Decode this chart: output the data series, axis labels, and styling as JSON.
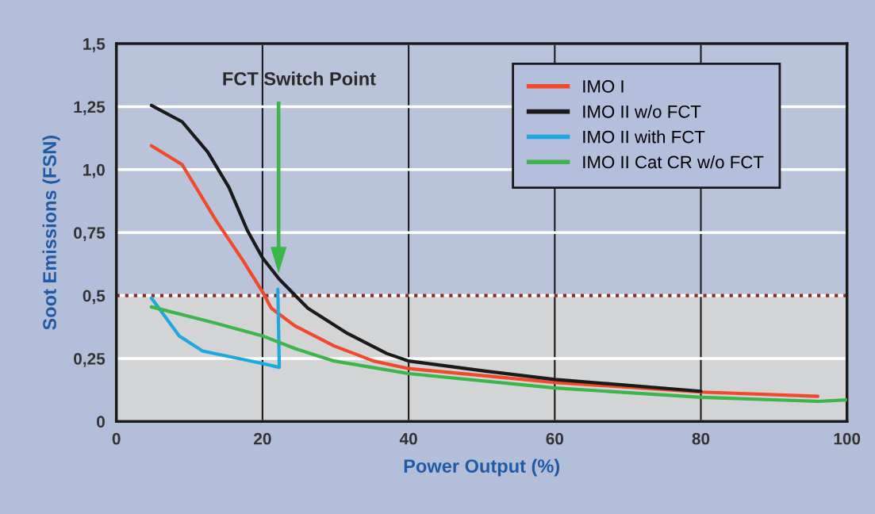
{
  "chart_data": {
    "type": "line",
    "xlabel": "Power Output (%)",
    "ylabel": "Soot Emissions (FSN)",
    "xlim": [
      0,
      100
    ],
    "xticks": [
      0,
      20,
      40,
      60,
      80,
      100
    ],
    "ylim": [
      0,
      1.5
    ],
    "yticks": [
      {
        "value": 0,
        "label": "0"
      },
      {
        "value": 0.25,
        "label": "0,25"
      },
      {
        "value": 0.5,
        "label": "0,5"
      },
      {
        "value": 0.75,
        "label": "0,75"
      },
      {
        "value": 1.0,
        "label": "1,0"
      },
      {
        "value": 1.25,
        "label": "1,25"
      },
      {
        "value": 1.5,
        "label": "1,5"
      }
    ],
    "grid": true,
    "legend": "top right",
    "line_style": "solid",
    "marker": "none",
    "bands": [
      {
        "axis": "y",
        "from": 0,
        "to": 0.5,
        "color": "#d3d4d6"
      }
    ],
    "ref_lines": [
      {
        "axis": "y",
        "value": 0.5,
        "color": "#8b2a2a",
        "line_style": "dotted"
      }
    ],
    "annotations": [
      "FCT Switch Point"
    ],
    "series": [
      {
        "name": "IMO I",
        "color": "#f04a2a",
        "x": [
          4.8,
          9,
          13.6,
          17.3,
          20,
          21.2,
          24.4,
          29.8,
          35.2,
          40,
          60,
          80,
          96
        ],
        "values": [
          1.095,
          1.02,
          0.8,
          0.64,
          0.515,
          0.45,
          0.38,
          0.3,
          0.24,
          0.21,
          0.155,
          0.117,
          0.1
        ]
      },
      {
        "name": "IMO II w/o FCT",
        "color": "#1a1a1a",
        "x": [
          4.8,
          9,
          12.5,
          15.4,
          17.9,
          20,
          22.3,
          26.2,
          31.6,
          37,
          40,
          50.5,
          60,
          80
        ],
        "values": [
          1.255,
          1.19,
          1.07,
          0.93,
          0.76,
          0.65,
          0.565,
          0.45,
          0.35,
          0.27,
          0.24,
          0.2,
          0.167,
          0.12
        ]
      },
      {
        "name": "IMO II with FCT",
        "color": "#1ea8e0",
        "x": [
          4.8,
          8.6,
          11.8,
          20,
          22.3,
          22.1
        ],
        "values": [
          0.49,
          0.34,
          0.28,
          0.23,
          0.215,
          0.525
        ]
      },
      {
        "name": "IMO II Cat CR w/o FCT",
        "color": "#3cb54a",
        "x": [
          4.8,
          13.6,
          20,
          24.4,
          29.8,
          40,
          60,
          80,
          96,
          100
        ],
        "values": [
          0.455,
          0.39,
          0.34,
          0.29,
          0.24,
          0.19,
          0.133,
          0.096,
          0.08,
          0.086
        ]
      }
    ]
  }
}
